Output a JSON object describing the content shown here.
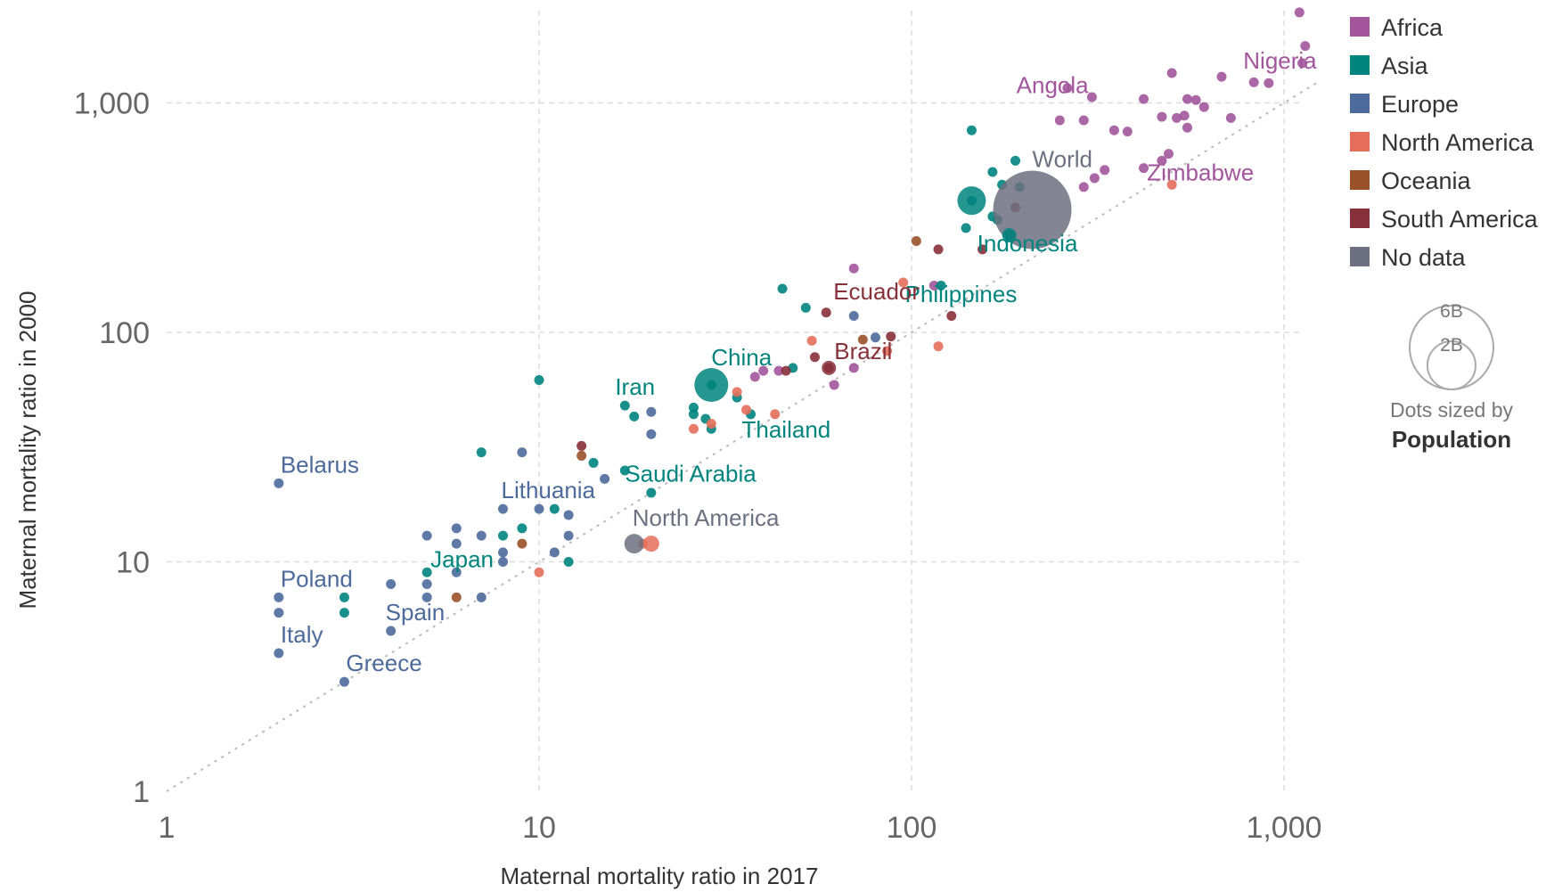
{
  "chart_data": {
    "type": "scatter",
    "title": "",
    "xlabel": "Maternal mortality ratio in 2017",
    "ylabel": "Maternal mortality ratio in 2000",
    "x_scale": "log",
    "y_scale": "log",
    "xlim": [
      1,
      1100
    ],
    "ylim": [
      1,
      2500
    ],
    "x_ticks": [
      {
        "v": 1,
        "label": "1"
      },
      {
        "v": 10,
        "label": "10"
      },
      {
        "v": 100,
        "label": "100"
      },
      {
        "v": 1000,
        "label": "1,000"
      }
    ],
    "y_ticks": [
      {
        "v": 1,
        "label": "1"
      },
      {
        "v": 10,
        "label": "10"
      },
      {
        "v": 100,
        "label": "100"
      },
      {
        "v": 1000,
        "label": "1,000"
      }
    ],
    "grid": true,
    "diagonal_reference_line": true,
    "legend_position": "right",
    "legend": [
      {
        "name": "Africa",
        "color": "#a2559c"
      },
      {
        "name": "Asia",
        "color": "#00847e"
      },
      {
        "name": "Europe",
        "color": "#4c6a9c"
      },
      {
        "name": "North America",
        "color": "#e56e5a"
      },
      {
        "name": "Oceania",
        "color": "#9a5129"
      },
      {
        "name": "South America",
        "color": "#883039"
      },
      {
        "name": "No data",
        "color": "#6d7080"
      }
    ],
    "size_legend": {
      "note": "Dots sized by",
      "variable": "Population",
      "large": "6B",
      "small": "2B"
    },
    "labeled_points": [
      {
        "name": "Nigeria",
        "x": 917,
        "y": 1200,
        "region": "Africa"
      },
      {
        "name": "Angola",
        "x": 241,
        "y": 924,
        "region": "Africa"
      },
      {
        "name": "Zimbabwe",
        "x": 458,
        "y": 590,
        "region": "Africa"
      },
      {
        "name": "World",
        "x": 211,
        "y": 342,
        "region": "No data"
      },
      {
        "name": "Indonesia",
        "x": 177,
        "y": 265,
        "region": "Asia"
      },
      {
        "name": "Philippines",
        "x": 121,
        "y": 162,
        "region": "Asia"
      },
      {
        "name": "Ecuador",
        "x": 59,
        "y": 122,
        "region": "South America"
      },
      {
        "name": "Brazil",
        "x": 60,
        "y": 70,
        "region": "South America"
      },
      {
        "name": "China",
        "x": 29,
        "y": 59,
        "region": "Asia"
      },
      {
        "name": "Thailand",
        "x": 37,
        "y": 44,
        "region": "Asia"
      },
      {
        "name": "Iran",
        "x": 16,
        "y": 48,
        "region": "Asia"
      },
      {
        "name": "Saudi Arabia",
        "x": 17,
        "y": 24,
        "region": "Asia"
      },
      {
        "name": "Lithuania",
        "x": 8,
        "y": 17,
        "region": "Europe"
      },
      {
        "name": "North America",
        "x": 18,
        "y": 12,
        "region": "No data"
      },
      {
        "name": "Belarus",
        "x": 2,
        "y": 22,
        "region": "Europe"
      },
      {
        "name": "Japan",
        "x": 5,
        "y": 9,
        "region": "Asia"
      },
      {
        "name": "Poland",
        "x": 2,
        "y": 7,
        "region": "Europe"
      },
      {
        "name": "Spain",
        "x": 4,
        "y": 5,
        "region": "Europe"
      },
      {
        "name": "Italy",
        "x": 2,
        "y": 4,
        "region": "Europe"
      },
      {
        "name": "Greece",
        "x": 3,
        "y": 3,
        "region": "Europe"
      }
    ],
    "points": [
      {
        "x": 1100,
        "y": 2480,
        "r": "Africa"
      },
      {
        "x": 1140,
        "y": 1770,
        "r": "Africa"
      },
      {
        "x": 1120,
        "y": 1490,
        "r": "Africa"
      },
      {
        "x": 910,
        "y": 1220,
        "r": "Africa"
      },
      {
        "x": 830,
        "y": 1230,
        "r": "Africa"
      },
      {
        "x": 680,
        "y": 1300,
        "r": "Africa"
      },
      {
        "x": 550,
        "y": 1040,
        "r": "Africa"
      },
      {
        "x": 580,
        "y": 1030,
        "r": "Africa"
      },
      {
        "x": 610,
        "y": 960,
        "r": "Africa"
      },
      {
        "x": 500,
        "y": 1350,
        "r": "Africa"
      },
      {
        "x": 420,
        "y": 1040,
        "r": "Africa"
      },
      {
        "x": 262,
        "y": 1160,
        "r": "Africa"
      },
      {
        "x": 305,
        "y": 1060,
        "r": "Africa"
      },
      {
        "x": 350,
        "y": 760,
        "r": "Africa"
      },
      {
        "x": 380,
        "y": 750,
        "r": "Africa"
      },
      {
        "x": 290,
        "y": 840,
        "r": "Africa"
      },
      {
        "x": 250,
        "y": 840,
        "r": "Africa"
      },
      {
        "x": 515,
        "y": 860,
        "r": "Africa"
      },
      {
        "x": 540,
        "y": 880,
        "r": "Africa"
      },
      {
        "x": 720,
        "y": 860,
        "r": "Africa"
      },
      {
        "x": 470,
        "y": 870,
        "r": "Africa"
      },
      {
        "x": 550,
        "y": 780,
        "r": "Africa"
      },
      {
        "x": 420,
        "y": 520,
        "r": "Africa"
      },
      {
        "x": 490,
        "y": 600,
        "r": "Africa"
      },
      {
        "x": 330,
        "y": 510,
        "r": "Africa"
      },
      {
        "x": 310,
        "y": 470,
        "r": "Africa"
      },
      {
        "x": 290,
        "y": 430,
        "r": "Africa"
      },
      {
        "x": 470,
        "y": 560,
        "r": "Africa"
      },
      {
        "x": 70,
        "y": 190,
        "r": "Africa"
      },
      {
        "x": 70,
        "y": 70,
        "r": "Africa"
      },
      {
        "x": 44,
        "y": 68,
        "r": "Africa"
      },
      {
        "x": 40,
        "y": 68,
        "r": "Africa"
      },
      {
        "x": 38,
        "y": 64,
        "r": "Africa"
      },
      {
        "x": 62,
        "y": 59,
        "r": "Africa"
      },
      {
        "x": 115,
        "y": 160,
        "r": "Africa"
      },
      {
        "x": 145,
        "y": 760,
        "r": "Asia"
      },
      {
        "x": 190,
        "y": 560,
        "r": "Asia"
      },
      {
        "x": 165,
        "y": 500,
        "r": "Asia"
      },
      {
        "x": 175,
        "y": 440,
        "r": "Asia"
      },
      {
        "x": 195,
        "y": 430,
        "r": "Asia"
      },
      {
        "x": 165,
        "y": 320,
        "r": "Asia"
      },
      {
        "x": 140,
        "y": 285,
        "r": "Asia"
      },
      {
        "x": 183,
        "y": 265,
        "r": "Asia"
      },
      {
        "x": 170,
        "y": 310,
        "r": "Asia"
      },
      {
        "x": 145,
        "y": 375,
        "r": "Asia"
      },
      {
        "x": 120,
        "y": 160,
        "r": "Asia"
      },
      {
        "x": 45,
        "y": 155,
        "r": "Asia"
      },
      {
        "x": 52,
        "y": 128,
        "r": "Asia"
      },
      {
        "x": 10,
        "y": 62,
        "r": "Asia"
      },
      {
        "x": 29,
        "y": 59,
        "r": "Asia"
      },
      {
        "x": 34,
        "y": 52,
        "r": "Asia"
      },
      {
        "x": 26,
        "y": 47,
        "r": "Asia"
      },
      {
        "x": 28,
        "y": 42,
        "r": "Asia"
      },
      {
        "x": 29,
        "y": 38,
        "r": "Asia"
      },
      {
        "x": 26,
        "y": 44,
        "r": "Asia"
      },
      {
        "x": 37,
        "y": 44,
        "r": "Asia"
      },
      {
        "x": 17,
        "y": 48,
        "r": "Asia"
      },
      {
        "x": 18,
        "y": 43,
        "r": "Asia"
      },
      {
        "x": 14,
        "y": 27,
        "r": "Asia"
      },
      {
        "x": 17,
        "y": 25,
        "r": "Asia"
      },
      {
        "x": 20,
        "y": 20,
        "r": "Asia"
      },
      {
        "x": 7,
        "y": 30,
        "r": "Asia"
      },
      {
        "x": 11,
        "y": 17,
        "r": "Asia"
      },
      {
        "x": 8,
        "y": 13,
        "r": "Asia"
      },
      {
        "x": 9,
        "y": 14,
        "r": "Asia"
      },
      {
        "x": 12,
        "y": 10,
        "r": "Asia"
      },
      {
        "x": 5,
        "y": 9,
        "r": "Asia"
      },
      {
        "x": 3,
        "y": 7,
        "r": "Asia"
      },
      {
        "x": 3,
        "y": 6,
        "r": "Asia"
      },
      {
        "x": 48,
        "y": 70,
        "r": "Asia"
      },
      {
        "x": 2,
        "y": 22,
        "r": "Europe"
      },
      {
        "x": 2,
        "y": 7,
        "r": "Europe"
      },
      {
        "x": 2,
        "y": 6,
        "r": "Europe"
      },
      {
        "x": 2,
        "y": 4,
        "r": "Europe"
      },
      {
        "x": 3,
        "y": 3,
        "r": "Europe"
      },
      {
        "x": 4,
        "y": 5,
        "r": "Europe"
      },
      {
        "x": 4,
        "y": 8,
        "r": "Europe"
      },
      {
        "x": 5,
        "y": 7,
        "r": "Europe"
      },
      {
        "x": 5,
        "y": 8,
        "r": "Europe"
      },
      {
        "x": 5,
        "y": 13,
        "r": "Europe"
      },
      {
        "x": 6,
        "y": 9,
        "r": "Europe"
      },
      {
        "x": 6,
        "y": 12,
        "r": "Europe"
      },
      {
        "x": 6,
        "y": 14,
        "r": "Europe"
      },
      {
        "x": 7,
        "y": 7,
        "r": "Europe"
      },
      {
        "x": 7,
        "y": 13,
        "r": "Europe"
      },
      {
        "x": 8,
        "y": 10,
        "r": "Europe"
      },
      {
        "x": 8,
        "y": 11,
        "r": "Europe"
      },
      {
        "x": 8,
        "y": 17,
        "r": "Europe"
      },
      {
        "x": 9,
        "y": 30,
        "r": "Europe"
      },
      {
        "x": 10,
        "y": 17,
        "r": "Europe"
      },
      {
        "x": 11,
        "y": 11,
        "r": "Europe"
      },
      {
        "x": 12,
        "y": 13,
        "r": "Europe"
      },
      {
        "x": 12,
        "y": 16,
        "r": "Europe"
      },
      {
        "x": 15,
        "y": 23,
        "r": "Europe"
      },
      {
        "x": 20,
        "y": 45,
        "r": "Europe"
      },
      {
        "x": 20,
        "y": 36,
        "r": "Europe"
      },
      {
        "x": 70,
        "y": 118,
        "r": "Europe"
      },
      {
        "x": 80,
        "y": 95,
        "r": "Europe"
      },
      {
        "x": 10,
        "y": 9,
        "r": "North America"
      },
      {
        "x": 19,
        "y": 12,
        "r": "North America"
      },
      {
        "x": 26,
        "y": 38,
        "r": "North America"
      },
      {
        "x": 29,
        "y": 40,
        "r": "North America"
      },
      {
        "x": 36,
        "y": 46,
        "r": "North America"
      },
      {
        "x": 43,
        "y": 44,
        "r": "North America"
      },
      {
        "x": 54,
        "y": 92,
        "r": "North America"
      },
      {
        "x": 86,
        "y": 83,
        "r": "North America"
      },
      {
        "x": 95,
        "y": 165,
        "r": "North America"
      },
      {
        "x": 118,
        "y": 87,
        "r": "North America"
      },
      {
        "x": 500,
        "y": 440,
        "r": "North America"
      },
      {
        "x": 34,
        "y": 55,
        "r": "North America"
      },
      {
        "x": 6,
        "y": 7,
        "r": "Oceania"
      },
      {
        "x": 9,
        "y": 12,
        "r": "Oceania"
      },
      {
        "x": 13,
        "y": 29,
        "r": "Oceania"
      },
      {
        "x": 103,
        "y": 250,
        "r": "Oceania"
      },
      {
        "x": 74,
        "y": 93,
        "r": "Oceania"
      },
      {
        "x": 13,
        "y": 32,
        "r": "South America"
      },
      {
        "x": 46,
        "y": 68,
        "r": "South America"
      },
      {
        "x": 55,
        "y": 78,
        "r": "South America"
      },
      {
        "x": 59,
        "y": 122,
        "r": "South America"
      },
      {
        "x": 60,
        "y": 70,
        "r": "South America"
      },
      {
        "x": 118,
        "y": 230,
        "r": "South America"
      },
      {
        "x": 128,
        "y": 118,
        "r": "South America"
      },
      {
        "x": 88,
        "y": 96,
        "r": "South America"
      },
      {
        "x": 190,
        "y": 350,
        "r": "South America"
      },
      {
        "x": 155,
        "y": 230,
        "r": "South America"
      }
    ],
    "big_bubbles": [
      {
        "x": 211,
        "y": 342,
        "r": "No data",
        "size": 44
      },
      {
        "x": 145,
        "y": 375,
        "r": "Asia",
        "size": 16
      },
      {
        "x": 29,
        "y": 59,
        "r": "Asia",
        "size": 19
      },
      {
        "x": 18,
        "y": 12,
        "r": "No data",
        "size": 11
      },
      {
        "x": 20,
        "y": 12,
        "r": "North America",
        "size": 9
      },
      {
        "x": 60,
        "y": 70,
        "r": "South America",
        "size": 8
      },
      {
        "x": 183,
        "y": 265,
        "r": "Asia",
        "size": 8
      }
    ]
  }
}
